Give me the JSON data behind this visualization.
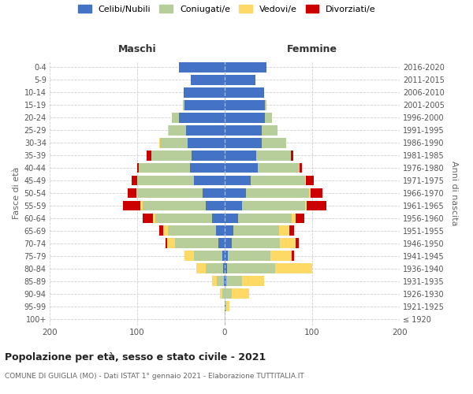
{
  "age_groups": [
    "100+",
    "95-99",
    "90-94",
    "85-89",
    "80-84",
    "75-79",
    "70-74",
    "65-69",
    "60-64",
    "55-59",
    "50-54",
    "45-49",
    "40-44",
    "35-39",
    "30-34",
    "25-29",
    "20-24",
    "15-19",
    "10-14",
    "5-9",
    "0-4"
  ],
  "birth_years": [
    "≤ 1920",
    "1921-1925",
    "1926-1930",
    "1931-1935",
    "1936-1940",
    "1941-1945",
    "1946-1950",
    "1951-1955",
    "1956-1960",
    "1961-1965",
    "1966-1970",
    "1971-1975",
    "1976-1980",
    "1981-1985",
    "1986-1990",
    "1991-1995",
    "1996-2000",
    "2001-2005",
    "2006-2010",
    "2011-2015",
    "2016-2020"
  ],
  "colors": {
    "celibi": "#4472c4",
    "coniugati": "#b7ce9b",
    "vedovi": "#ffd966",
    "divorziati": "#cc0000"
  },
  "maschi": {
    "celibi": [
      0,
      0,
      0,
      1,
      2,
      3,
      7,
      10,
      14,
      22,
      25,
      35,
      40,
      38,
      42,
      44,
      52,
      46,
      47,
      39,
      52
    ],
    "coniugati": [
      0,
      0,
      3,
      8,
      20,
      32,
      50,
      55,
      65,
      72,
      75,
      65,
      58,
      46,
      32,
      20,
      8,
      2,
      0,
      0,
      0
    ],
    "vedovi": [
      0,
      0,
      2,
      5,
      10,
      11,
      9,
      5,
      3,
      2,
      1,
      0,
      0,
      0,
      1,
      1,
      0,
      0,
      0,
      0,
      0
    ],
    "divorziati": [
      0,
      0,
      0,
      0,
      0,
      0,
      2,
      5,
      12,
      20,
      10,
      6,
      2,
      5,
      0,
      0,
      0,
      0,
      0,
      0,
      0
    ]
  },
  "femmine": {
    "celibi": [
      0,
      1,
      0,
      2,
      3,
      4,
      8,
      10,
      15,
      20,
      24,
      30,
      38,
      36,
      42,
      42,
      46,
      46,
      45,
      35,
      48
    ],
    "coniugati": [
      0,
      1,
      8,
      18,
      55,
      48,
      55,
      52,
      62,
      72,
      72,
      62,
      48,
      40,
      28,
      18,
      8,
      2,
      0,
      0,
      0
    ],
    "vedovi": [
      1,
      3,
      20,
      25,
      42,
      25,
      18,
      12,
      4,
      2,
      2,
      1,
      0,
      0,
      0,
      0,
      0,
      0,
      0,
      0,
      0
    ],
    "divorziati": [
      0,
      0,
      0,
      0,
      0,
      2,
      4,
      5,
      10,
      22,
      14,
      9,
      2,
      2,
      0,
      0,
      0,
      0,
      0,
      0,
      0
    ]
  },
  "title": "Popolazione per età, sesso e stato civile - 2021",
  "subtitle": "COMUNE DI GUIGLIA (MO) - Dati ISTAT 1° gennaio 2021 - Elaborazione TUTTITALIA.IT",
  "xlabel_left": "Maschi",
  "xlabel_right": "Femmine",
  "ylabel_left": "Fasce di età",
  "ylabel_right": "Anni di nascita",
  "xlim": 200,
  "legend_labels": [
    "Celibi/Nubili",
    "Coniugati/e",
    "Vedovi/e",
    "Divorziati/e"
  ],
  "background_color": "#ffffff",
  "grid_color": "#d0d0d0"
}
